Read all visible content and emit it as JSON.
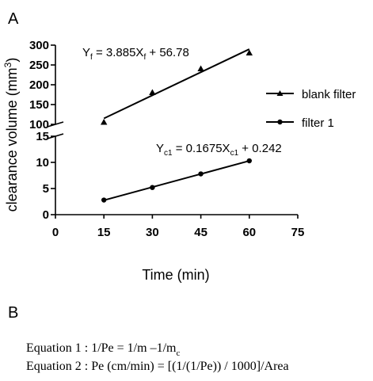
{
  "panel_a_label": "A",
  "panel_b_label": "B",
  "chart_data": [
    {
      "type": "line",
      "xlabel": "Time (min)",
      "ylabel": "clearance volume (mm3)",
      "ylabel_text": "clearance volume (mm",
      "ylabel_sup": "3",
      "ylabel_close": ")",
      "xlim": [
        0,
        75
      ],
      "x_ticks": [
        0,
        15,
        30,
        45,
        60,
        75
      ],
      "broken_y_axis": true,
      "upper_ylim": [
        100,
        300
      ],
      "upper_y_ticks": [
        100,
        150,
        200,
        250,
        300
      ],
      "lower_ylim": [
        0,
        15
      ],
      "lower_y_ticks": [
        0,
        5,
        10,
        15
      ],
      "grid": false,
      "legend_position": "right",
      "series": [
        {
          "name": "blank filter",
          "marker": "triangle",
          "x": [
            15,
            30,
            45,
            60
          ],
          "y": [
            105,
            180,
            240,
            280
          ],
          "fit": {
            "slope": 3.885,
            "intercept": 56.78
          },
          "equation": {
            "base": "Y",
            "sub": "f",
            "mid": " = 3.885X",
            "sub2": "f",
            "tail": " + 56.78"
          }
        },
        {
          "name": "filter 1",
          "marker": "circle",
          "x": [
            15,
            30,
            45,
            60
          ],
          "y": [
            2.8,
            5.2,
            7.8,
            10.3
          ],
          "fit": {
            "slope": 0.1675,
            "intercept": 0.242
          },
          "equation": {
            "base": "Y",
            "sub": "c1",
            "mid": " = 0.1675X",
            "sub2": "c1",
            "tail": " + 0.242"
          }
        }
      ]
    }
  ],
  "equations": [
    {
      "main": "Equation 1 : 1/Pe = 1/m –1/m",
      "sub": "c"
    },
    {
      "main": "Equation 2 : Pe (cm/min) = [(1/(1/Pe)) / 1000]/Area",
      "sub": ""
    }
  ]
}
